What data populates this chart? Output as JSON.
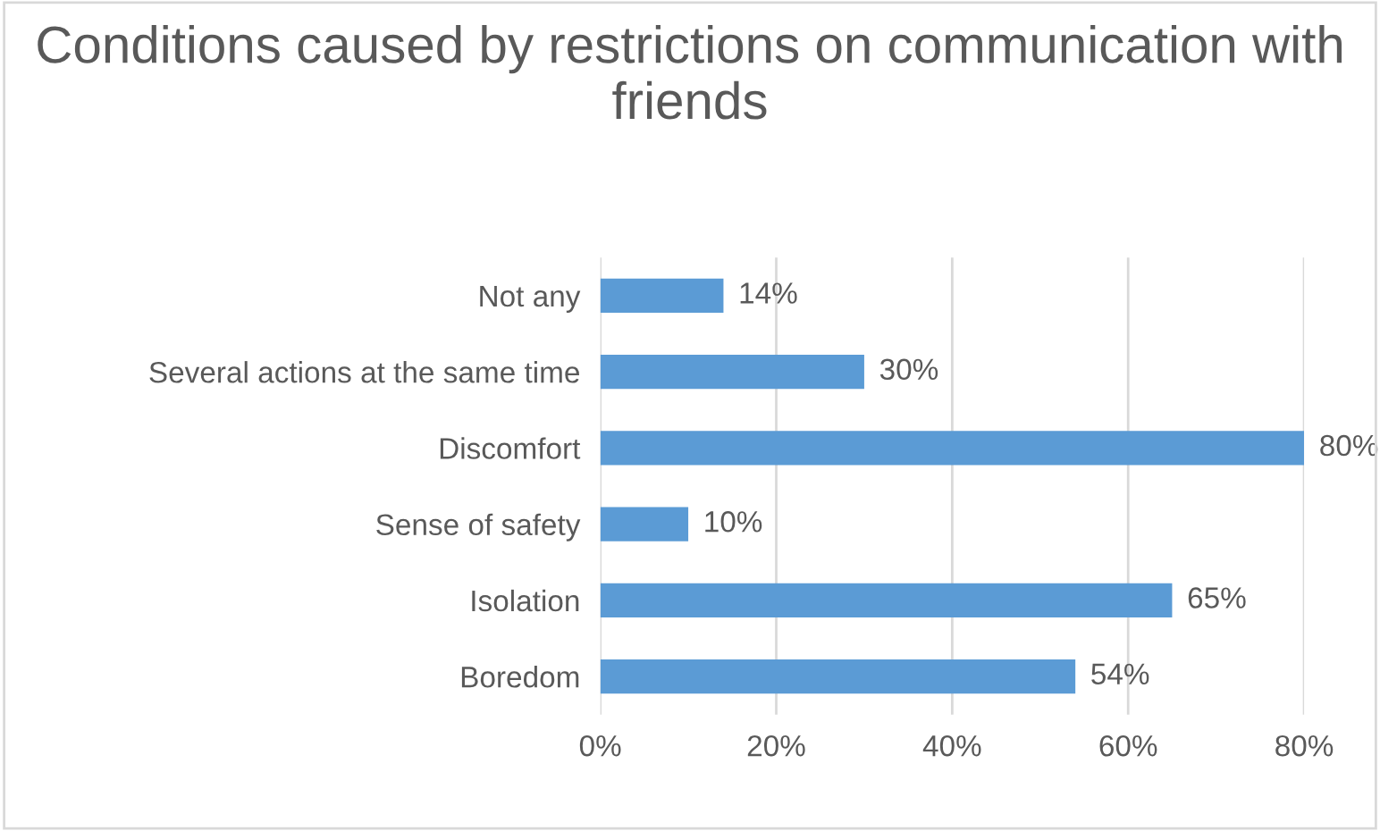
{
  "chart_data": {
    "type": "bar",
    "orientation": "horizontal",
    "title": "Conditions caused by restrictions on communication with friends",
    "categories": [
      "Not any",
      "Several actions at the same time",
      "Discomfort",
      "Sense of safety",
      "Isolation",
      "Boredom"
    ],
    "values": [
      14,
      30,
      80,
      10,
      65,
      54
    ],
    "value_labels": [
      "14%",
      "30%",
      "80%",
      "10%",
      "65%",
      "54%"
    ],
    "color": "#5b9bd5",
    "xlim": [
      0,
      80
    ],
    "xticks": [
      {
        "value": 0,
        "label": "0%"
      },
      {
        "value": 20,
        "label": "20%"
      },
      {
        "value": 40,
        "label": "40%"
      },
      {
        "value": 60,
        "label": "60%"
      },
      {
        "value": 80,
        "label": "80%"
      }
    ],
    "grid": "x",
    "legend": false
  }
}
